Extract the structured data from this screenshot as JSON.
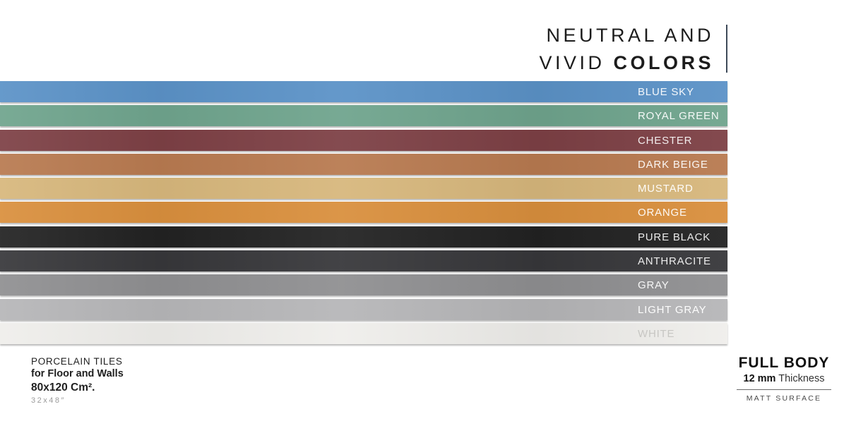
{
  "header": {
    "title_line1": "NEUTRAL AND",
    "title_line2_regular": "VIVID ",
    "title_line2_bold": "COLORS",
    "divider_color": "#3e4a59"
  },
  "palette": {
    "swatches": [
      {
        "name": "BLUE SKY",
        "color": "#5b92c7",
        "label_color": "rgba(255,255,255,0.93)"
      },
      {
        "name": "ROYAL GREEN",
        "color": "#6fa48d",
        "label_color": "rgba(255,255,255,0.93)"
      },
      {
        "name": "CHESTER",
        "color": "#7d4045",
        "label_color": "rgba(255,255,255,0.90)"
      },
      {
        "name": "DARK BEIGE",
        "color": "#b87a50",
        "label_color": "rgba(255,255,255,0.93)"
      },
      {
        "name": "MUSTARD",
        "color": "#d7b77c",
        "label_color": "rgba(255,255,255,0.95)"
      },
      {
        "name": "ORANGE",
        "color": "#d98f3d",
        "label_color": "rgba(255,255,255,0.95)"
      },
      {
        "name": "PURE BLACK",
        "color": "#222222",
        "label_color": "rgba(255,255,255,0.90)"
      },
      {
        "name": "ANTHRACITE",
        "color": "#37373a",
        "label_color": "rgba(255,255,255,0.90)"
      },
      {
        "name": "GRAY",
        "color": "#8f8f91",
        "label_color": "rgba(255,255,255,0.93)"
      },
      {
        "name": "LIGHT GRAY",
        "color": "#b6b6b8",
        "label_color": "rgba(255,255,255,0.97)"
      },
      {
        "name": "WHITE",
        "color": "#efeeeb",
        "label_color": "#c7c6c3"
      }
    ]
  },
  "footer_left": {
    "line1": "PORCELAIN TILES",
    "line2": "for Floor and Walls",
    "line3": "80x120 Cm².",
    "line4": "32x48″"
  },
  "footer_right": {
    "title": "FULL BODY",
    "thickness_bold": "12 mm",
    "thickness_regular": " Thickness",
    "surface": "MATT SURFACE"
  }
}
